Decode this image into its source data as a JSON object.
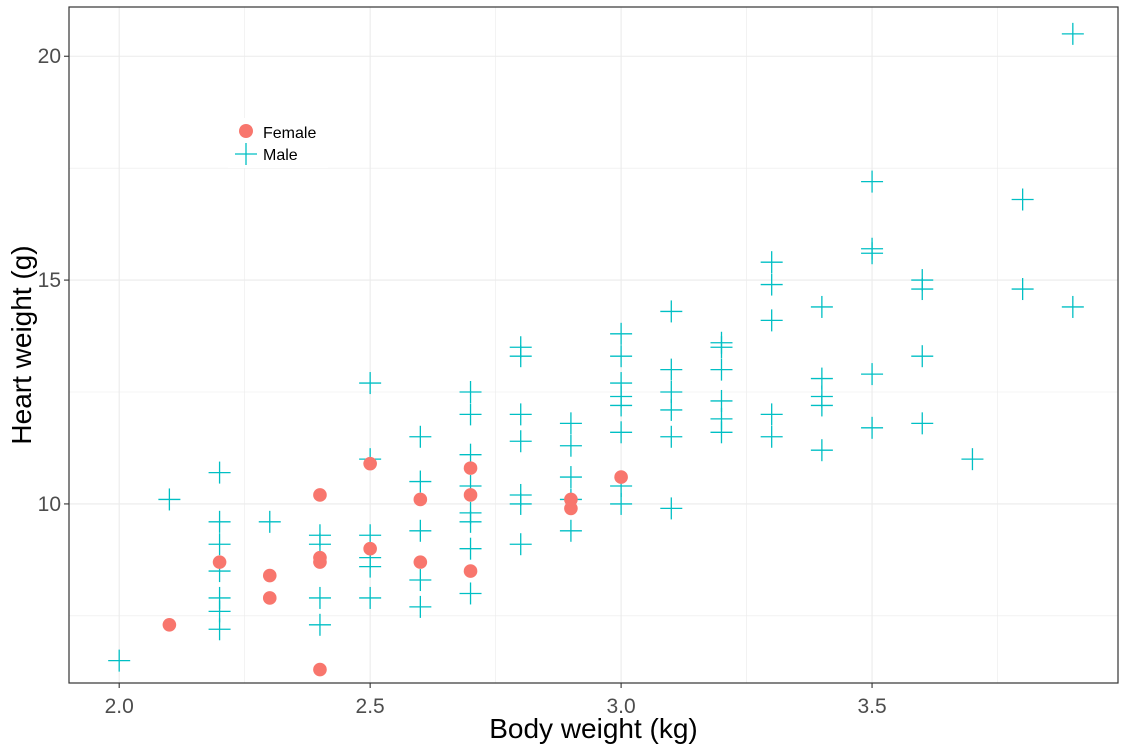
{
  "chart_data": {
    "type": "scatter",
    "xlabel": "Body weight (kg)",
    "ylabel": "Heart weight (g)",
    "xlim": [
      1.9,
      3.99
    ],
    "ylim": [
      6.0,
      21.1
    ],
    "x_ticks": [
      2.0,
      2.5,
      3.0,
      3.5
    ],
    "x_tick_labels": [
      "2.0",
      "2.5",
      "3.0",
      "3.5"
    ],
    "y_ticks": [
      10,
      15,
      20
    ],
    "y_tick_labels": [
      "10",
      "15",
      "20"
    ],
    "grid": true,
    "legend_position": "top-left (inside)",
    "series": [
      {
        "name": "Female",
        "color": "#F8766D",
        "marker": "circle",
        "points": [
          [
            2.1,
            7.3
          ],
          [
            2.2,
            8.7
          ],
          [
            2.3,
            8.4
          ],
          [
            2.3,
            7.9
          ],
          [
            2.4,
            10.2
          ],
          [
            2.4,
            8.8
          ],
          [
            2.4,
            8.7
          ],
          [
            2.4,
            6.3
          ],
          [
            2.5,
            10.9
          ],
          [
            2.5,
            9.0
          ],
          [
            2.6,
            10.1
          ],
          [
            2.6,
            8.7
          ],
          [
            2.7,
            10.8
          ],
          [
            2.7,
            10.2
          ],
          [
            2.7,
            8.5
          ],
          [
            2.9,
            10.1
          ],
          [
            2.9,
            9.9
          ],
          [
            3.0,
            10.6
          ]
        ]
      },
      {
        "name": "Male",
        "color": "#00BFC4",
        "marker": "plus",
        "points": [
          [
            2.0,
            6.5
          ],
          [
            2.1,
            10.1
          ],
          [
            2.2,
            10.7
          ],
          [
            2.2,
            9.6
          ],
          [
            2.2,
            9.1
          ],
          [
            2.2,
            8.5
          ],
          [
            2.2,
            7.9
          ],
          [
            2.2,
            7.6
          ],
          [
            2.2,
            7.2
          ],
          [
            2.3,
            9.6
          ],
          [
            2.4,
            9.3
          ],
          [
            2.4,
            9.1
          ],
          [
            2.4,
            7.9
          ],
          [
            2.4,
            7.3
          ],
          [
            2.5,
            12.7
          ],
          [
            2.5,
            11.0
          ],
          [
            2.5,
            9.3
          ],
          [
            2.5,
            8.8
          ],
          [
            2.5,
            8.6
          ],
          [
            2.5,
            7.9
          ],
          [
            2.6,
            11.5
          ],
          [
            2.6,
            10.5
          ],
          [
            2.6,
            9.4
          ],
          [
            2.6,
            8.3
          ],
          [
            2.6,
            7.7
          ],
          [
            2.7,
            12.5
          ],
          [
            2.7,
            12.0
          ],
          [
            2.7,
            11.1
          ],
          [
            2.7,
            10.4
          ],
          [
            2.7,
            9.8
          ],
          [
            2.7,
            9.6
          ],
          [
            2.7,
            9.0
          ],
          [
            2.7,
            8.0
          ],
          [
            2.8,
            13.5
          ],
          [
            2.8,
            13.3
          ],
          [
            2.8,
            12.0
          ],
          [
            2.8,
            11.4
          ],
          [
            2.8,
            10.2
          ],
          [
            2.8,
            10.0
          ],
          [
            2.8,
            9.1
          ],
          [
            2.9,
            11.8
          ],
          [
            2.9,
            11.3
          ],
          [
            2.9,
            10.6
          ],
          [
            2.9,
            10.1
          ],
          [
            2.9,
            9.4
          ],
          [
            3.0,
            13.8
          ],
          [
            3.0,
            13.3
          ],
          [
            3.0,
            12.7
          ],
          [
            3.0,
            12.4
          ],
          [
            3.0,
            12.2
          ],
          [
            3.0,
            11.6
          ],
          [
            3.0,
            10.4
          ],
          [
            3.0,
            10.0
          ],
          [
            3.1,
            14.3
          ],
          [
            3.1,
            13.0
          ],
          [
            3.1,
            12.5
          ],
          [
            3.1,
            12.1
          ],
          [
            3.1,
            11.5
          ],
          [
            3.1,
            9.9
          ],
          [
            3.2,
            13.6
          ],
          [
            3.2,
            13.5
          ],
          [
            3.2,
            13.0
          ],
          [
            3.2,
            12.3
          ],
          [
            3.2,
            11.9
          ],
          [
            3.2,
            11.6
          ],
          [
            3.3,
            15.4
          ],
          [
            3.3,
            14.9
          ],
          [
            3.3,
            14.1
          ],
          [
            3.3,
            12.0
          ],
          [
            3.3,
            11.5
          ],
          [
            3.4,
            14.4
          ],
          [
            3.4,
            12.8
          ],
          [
            3.4,
            12.4
          ],
          [
            3.4,
            12.2
          ],
          [
            3.4,
            11.2
          ],
          [
            3.5,
            17.2
          ],
          [
            3.5,
            15.7
          ],
          [
            3.5,
            15.6
          ],
          [
            3.5,
            12.9
          ],
          [
            3.5,
            11.7
          ],
          [
            3.6,
            15.0
          ],
          [
            3.6,
            14.8
          ],
          [
            3.6,
            13.3
          ],
          [
            3.6,
            11.8
          ],
          [
            3.7,
            11.0
          ],
          [
            3.8,
            16.8
          ],
          [
            3.8,
            14.8
          ],
          [
            3.9,
            20.5
          ],
          [
            3.9,
            14.4
          ]
        ]
      }
    ],
    "panel_border_color": "#333333",
    "grid_color": "#EBEBEB"
  }
}
